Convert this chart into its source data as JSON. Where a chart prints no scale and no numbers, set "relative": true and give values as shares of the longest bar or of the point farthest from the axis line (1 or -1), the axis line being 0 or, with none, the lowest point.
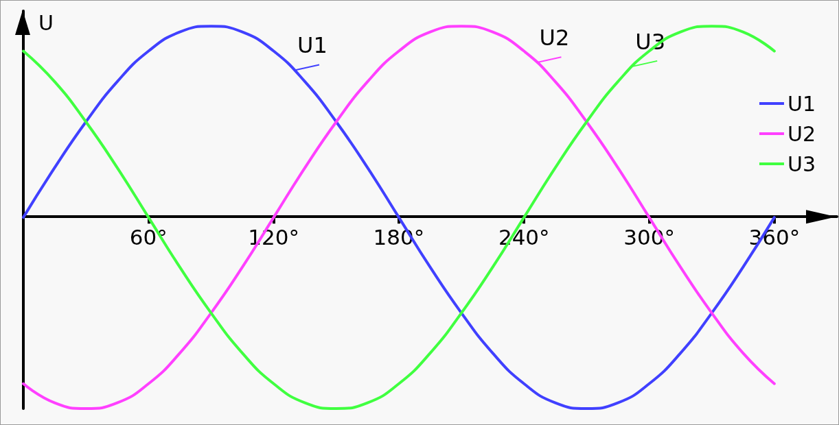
{
  "chart_data": {
    "type": "line",
    "relative": true,
    "ylabel": "U",
    "x": [
      0,
      15,
      30,
      45,
      60,
      75,
      90,
      105,
      120,
      135,
      150,
      165,
      180,
      195,
      210,
      225,
      240,
      255,
      270,
      285,
      300,
      315,
      330,
      345,
      360
    ],
    "xlim": [
      0,
      390
    ],
    "xticks": [
      {
        "value": 60,
        "label": "60°"
      },
      {
        "value": 120,
        "label": "120°"
      },
      {
        "value": 180,
        "label": "180°"
      },
      {
        "value": 240,
        "label": "240°"
      },
      {
        "value": 300,
        "label": "300°"
      },
      {
        "value": 360,
        "label": "360°"
      }
    ],
    "series": [
      {
        "name": "U1",
        "color": "#4040ff",
        "values": [
          0,
          0.26,
          0.5,
          0.71,
          0.87,
          0.97,
          1,
          0.97,
          0.87,
          0.71,
          0.5,
          0.26,
          0,
          -0.26,
          -0.5,
          -0.71,
          -0.87,
          -0.97,
          -1,
          -0.97,
          -0.87,
          -0.71,
          -0.5,
          -0.26,
          0
        ]
      },
      {
        "name": "U2",
        "color": "#ff40ff",
        "values": [
          -0.87,
          -0.97,
          -1,
          -0.97,
          -0.87,
          -0.71,
          -0.5,
          -0.26,
          0,
          0.26,
          0.5,
          0.71,
          0.87,
          0.97,
          1,
          0.97,
          0.87,
          0.71,
          0.5,
          0.26,
          0,
          -0.26,
          -0.5,
          -0.71,
          -0.87
        ]
      },
      {
        "name": "U3",
        "color": "#40ff40",
        "values": [
          0.87,
          0.71,
          0.5,
          0.26,
          0,
          -0.26,
          -0.5,
          -0.71,
          -0.87,
          -0.97,
          -1,
          -0.97,
          -0.87,
          -0.71,
          -0.5,
          -0.26,
          0,
          0.26,
          0.5,
          0.71,
          0.87,
          0.97,
          1,
          0.97,
          0.87
        ]
      }
    ],
    "annotations": [
      {
        "text": "U1",
        "x": 130,
        "y": 0.77
      },
      {
        "text": "U2",
        "x": 246,
        "y": 0.81
      },
      {
        "text": "U3",
        "x": 292,
        "y": 0.79
      }
    ],
    "legend": "right",
    "marker": "none",
    "line_style": "solid",
    "grid": false
  }
}
